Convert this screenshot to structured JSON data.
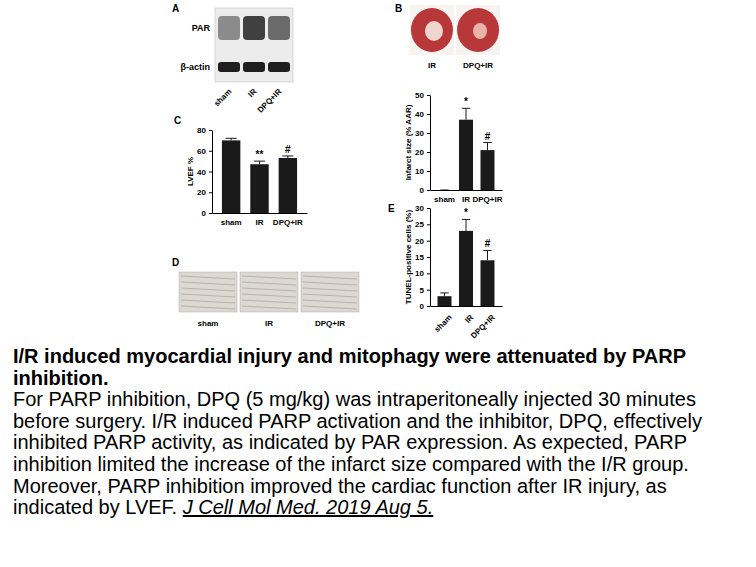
{
  "chart_data": [
    {
      "type": "bar",
      "ylabel": "Infarct size (% AAR)",
      "categories": [
        "sham",
        "IR",
        "DPQ+IR"
      ],
      "values": [
        0,
        37,
        21
      ],
      "errors": [
        0,
        6,
        4
      ],
      "annotations": [
        null,
        "*",
        "#"
      ],
      "color": "#1a1a1a",
      "ylim": [
        0,
        50
      ],
      "yticks": [
        0,
        10,
        20,
        30,
        40,
        50
      ]
    },
    {
      "type": "bar",
      "letter": "C",
      "ylabel": "LVEF %",
      "categories": [
        "sham",
        "IR",
        "DPQ+IR"
      ],
      "values": [
        70,
        47,
        53
      ],
      "errors": [
        2,
        3,
        2
      ],
      "annotations": [
        null,
        "**",
        "#"
      ],
      "color": "#1a1a1a",
      "ylim": [
        0,
        80
      ],
      "yticks": [
        0,
        20,
        40,
        60,
        80
      ]
    },
    {
      "type": "bar",
      "letter": "E",
      "ylabel": "TUNEL-positive cells (%)",
      "categories": [
        "sham",
        "IR",
        "DPQ+IR"
      ],
      "values": [
        3,
        23,
        14
      ],
      "errors": [
        1,
        3.5,
        3
      ],
      "annotations": [
        null,
        "*",
        "#"
      ],
      "color": "#1a1a1a",
      "ylim": [
        0,
        30
      ],
      "yticks": [
        0,
        5,
        10,
        15,
        20,
        25,
        30
      ]
    }
  ],
  "blot": {
    "letter": "A",
    "rows": [
      "PAR",
      "β-actin"
    ],
    "lanes": [
      "sham",
      "IR",
      "DPQ+IR"
    ]
  },
  "heart_photos": {
    "letter": "B",
    "labels": [
      "IR",
      "DPQ+IR"
    ]
  },
  "histology": {
    "letter": "D",
    "labels": [
      "sham",
      "IR",
      "DPQ+IR"
    ]
  },
  "caption": {
    "title": "I/R induced myocardial injury and mitophagy were attenuated by PARP inhibition.",
    "text": "For PARP inhibition, DPQ (5 mg/kg) was intraperitoneally injected 30 minutes before surgery. I/R induced PARP activation and the inhibitor, DPQ, effectively inhibited PARP activity, as indicated by PAR expression. As expected, PARP inhibition limited the increase of the infarct size compared with the I/R group. Moreover, PARP inhibition improved the cardiac function after IR injury, as indicated by LVEF.",
    "citation": "J Cell Mol Med. 2019 Aug 5."
  }
}
